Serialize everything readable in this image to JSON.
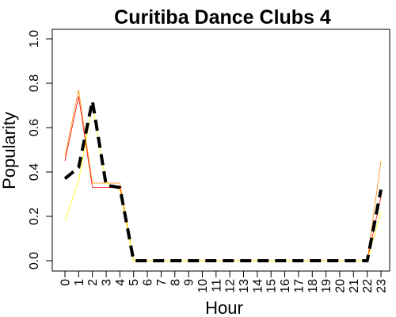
{
  "chart_data": {
    "type": "line",
    "title": "Curitiba Dance Clubs 4",
    "xlabel": "Hour",
    "ylabel": "Popularity",
    "x": [
      0,
      1,
      2,
      3,
      4,
      5,
      6,
      7,
      8,
      9,
      10,
      11,
      12,
      13,
      14,
      15,
      16,
      17,
      18,
      19,
      20,
      21,
      22,
      23
    ],
    "x_tick_labels": [
      "0",
      "1",
      "2",
      "3",
      "4",
      "5",
      "6",
      "7",
      "8",
      "9",
      "10",
      "11",
      "12",
      "13",
      "14",
      "15",
      "16",
      "17",
      "18",
      "19",
      "20",
      "21",
      "22",
      "23"
    ],
    "y_ticks": [
      0.0,
      0.2,
      0.4,
      0.6,
      0.8,
      1.0
    ],
    "y_tick_labels": [
      "0.0",
      "0.2",
      "0.4",
      "0.6",
      "0.8",
      "1.0"
    ],
    "xlim": [
      0,
      23
    ],
    "ylim": [
      0,
      1
    ],
    "grid": false,
    "legend": false,
    "series": [
      {
        "color": "#ff0000",
        "width": 0.8,
        "dash": "",
        "values": [
          0.45,
          0.74,
          0.33,
          0.33,
          0.33,
          0,
          0,
          0,
          0,
          0,
          0,
          0,
          0,
          0,
          0,
          0,
          0,
          0,
          0,
          0,
          0,
          0,
          0,
          0.29
        ]
      },
      {
        "color": "#ff8800",
        "width": 0.8,
        "dash": "",
        "values": [
          0.47,
          0.77,
          0.35,
          0.35,
          0.35,
          0,
          0,
          0,
          0,
          0,
          0,
          0,
          0,
          0,
          0,
          0,
          0,
          0,
          0,
          0,
          0,
          0,
          0,
          0.45
        ]
      },
      {
        "color": "#ffff00",
        "width": 0.8,
        "dash": "",
        "values": [
          0.18,
          0.36,
          0.7,
          0.35,
          0.32,
          0,
          0,
          0,
          0,
          0,
          0,
          0,
          0,
          0,
          0,
          0,
          0,
          0,
          0,
          0,
          0,
          0,
          0,
          0.22
        ]
      },
      {
        "color": "#000000",
        "width": 4,
        "dash": "14,8",
        "values": [
          0.37,
          0.42,
          0.72,
          0.34,
          0.33,
          0,
          0,
          0,
          0,
          0,
          0,
          0,
          0,
          0,
          0,
          0,
          0,
          0,
          0,
          0,
          0,
          0,
          0,
          0.32
        ]
      }
    ]
  }
}
